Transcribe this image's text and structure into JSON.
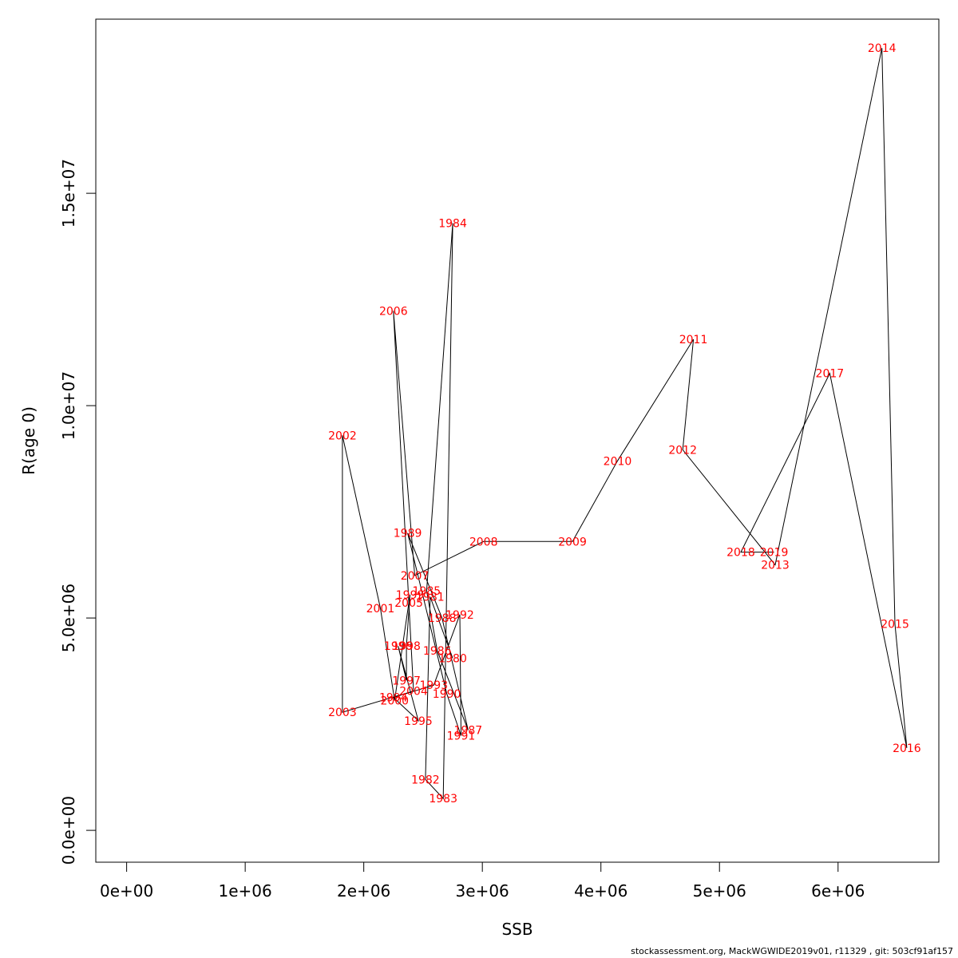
{
  "chart_data": {
    "type": "scatter",
    "mode": "connected-path-with-year-labels",
    "xlabel": "SSB",
    "ylabel": "R(age 0)",
    "xlim": [
      -260000,
      6850000
    ],
    "ylim": [
      -750000,
      19100000
    ],
    "x_ticks": [
      0,
      1000000,
      2000000,
      3000000,
      4000000,
      5000000,
      6000000
    ],
    "x_tick_labels": [
      "0e+00",
      "1e+06",
      "2e+06",
      "3e+06",
      "4e+06",
      "5e+06",
      "6e+06"
    ],
    "y_ticks": [
      0,
      5000000,
      10000000,
      15000000
    ],
    "y_tick_labels": [
      "0.0e+00",
      "5.0e+06",
      "1.0e+07",
      "1.5e+07"
    ],
    "line_color": "#000000",
    "label_color": "#ff0000",
    "points": [
      {
        "year": "1980",
        "x": 2750000,
        "y": 4050000
      },
      {
        "year": "1981",
        "x": 2560000,
        "y": 5500000
      },
      {
        "year": "1982",
        "x": 2520000,
        "y": 1200000
      },
      {
        "year": "1983",
        "x": 2670000,
        "y": 750000
      },
      {
        "year": "1984",
        "x": 2750000,
        "y": 14300000
      },
      {
        "year": "1985",
        "x": 2530000,
        "y": 5640000
      },
      {
        "year": "1986",
        "x": 2620000,
        "y": 4230000
      },
      {
        "year": "1987",
        "x": 2880000,
        "y": 2360000
      },
      {
        "year": "1988",
        "x": 2660000,
        "y": 5000000
      },
      {
        "year": "1989",
        "x": 2370000,
        "y": 7000000
      },
      {
        "year": "1990",
        "x": 2700000,
        "y": 3220000
      },
      {
        "year": "1991",
        "x": 2820000,
        "y": 2230000
      },
      {
        "year": "1992",
        "x": 2810000,
        "y": 5080000
      },
      {
        "year": "1993",
        "x": 2590000,
        "y": 3420000
      },
      {
        "year": "1994",
        "x": 2250000,
        "y": 3130000
      },
      {
        "year": "1995",
        "x": 2460000,
        "y": 2580000
      },
      {
        "year": "1996",
        "x": 2290000,
        "y": 4340000
      },
      {
        "year": "1997",
        "x": 2360000,
        "y": 3530000
      },
      {
        "year": "1998",
        "x": 2360000,
        "y": 4340000
      },
      {
        "year": "1999",
        "x": 2390000,
        "y": 5550000
      },
      {
        "year": "2000",
        "x": 2260000,
        "y": 3060000
      },
      {
        "year": "2001",
        "x": 2140000,
        "y": 5230000
      },
      {
        "year": "2002",
        "x": 1820000,
        "y": 9300000
      },
      {
        "year": "2003",
        "x": 1820000,
        "y": 2780000
      },
      {
        "year": "2004",
        "x": 2420000,
        "y": 3280000
      },
      {
        "year": "2005",
        "x": 2380000,
        "y": 5360000
      },
      {
        "year": "2006",
        "x": 2250000,
        "y": 12230000
      },
      {
        "year": "2007",
        "x": 2430000,
        "y": 6000000
      },
      {
        "year": "2008",
        "x": 3010000,
        "y": 6800000
      },
      {
        "year": "2009",
        "x": 3760000,
        "y": 6800000
      },
      {
        "year": "2010",
        "x": 4140000,
        "y": 8700000
      },
      {
        "year": "2011",
        "x": 4780000,
        "y": 11560000
      },
      {
        "year": "2012",
        "x": 4690000,
        "y": 8960000
      },
      {
        "year": "2013",
        "x": 5470000,
        "y": 6250000
      },
      {
        "year": "2014",
        "x": 6370000,
        "y": 18420000
      },
      {
        "year": "2015",
        "x": 6480000,
        "y": 4860000
      },
      {
        "year": "2016",
        "x": 6580000,
        "y": 1940000
      },
      {
        "year": "2017",
        "x": 5930000,
        "y": 10760000
      },
      {
        "year": "2018",
        "x": 5180000,
        "y": 6550000
      },
      {
        "year": "2019",
        "x": 5460000,
        "y": 6550000
      }
    ]
  },
  "footer": "stockassessment.org, MackWGWIDE2019v01, r11329 , git: 503cf91af157"
}
